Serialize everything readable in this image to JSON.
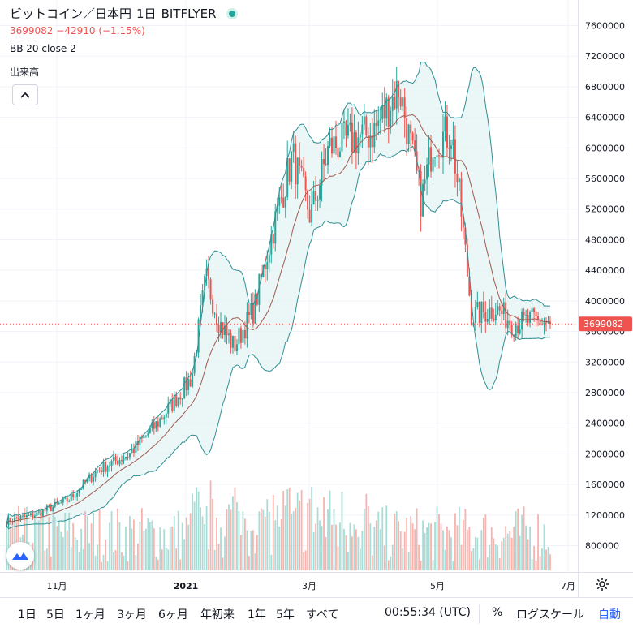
{
  "header": {
    "title": "ビットコイン／日本円",
    "interval": "1日",
    "exchange": "BITFLYER",
    "quote": "3699082",
    "change": "−42910 (−1.15%)",
    "indicator_bb": "BB 20 close 2",
    "indicator_volume": "出来高"
  },
  "price_scale": {
    "labels": [
      "7600000",
      "7200000",
      "6800000",
      "6400000",
      "6000000",
      "5600000",
      "5200000",
      "4800000",
      "4400000",
      "4000000",
      "3600000",
      "3200000",
      "2800000",
      "2400000",
      "2000000",
      "1600000",
      "1200000",
      "800000"
    ],
    "last_price_label": "3699082"
  },
  "time_scale": {
    "labels": [
      "11月",
      "2021",
      "3月",
      "5月",
      "7月"
    ]
  },
  "toolbar": {
    "ranges": [
      "1日",
      "5日",
      "1ヶ月",
      "3ヶ月",
      "6ヶ月",
      "年初来",
      "1年",
      "5年",
      "すべて"
    ],
    "clock": "00:55:34 (UTC)",
    "percent": "%",
    "log_scale": "ログスケール",
    "auto": "自動"
  },
  "colors": {
    "up": "#26a69a",
    "down": "#ef5350",
    "band": "#2f8f94",
    "basis": "#a05a50",
    "band_fill": "#e3f3f2",
    "up_volume": "#a8dcd6",
    "down_volume": "#f7b3ae"
  },
  "chart_data": {
    "type": "candlestick",
    "series": [
      {
        "name": "BB 20 close 2",
        "kind": "bollinger_bands"
      },
      {
        "name": "出来高",
        "kind": "volume"
      }
    ],
    "x": [
      "2020-10-01",
      "2020-10-15",
      "2020-11-01",
      "2020-11-15",
      "2020-12-01",
      "2020-12-15",
      "2021-01-01",
      "2021-01-08",
      "2021-01-15",
      "2021-01-22",
      "2021-02-01",
      "2021-02-10",
      "2021-02-20",
      "2021-03-01",
      "2021-03-10",
      "2021-03-20",
      "2021-04-01",
      "2021-04-14",
      "2021-04-25",
      "2021-05-01",
      "2021-05-10",
      "2021-05-15",
      "2021-05-20",
      "2021-06-01",
      "2021-06-10",
      "2021-06-20",
      "2021-06-28"
    ],
    "close": [
      1120000,
      1200000,
      1400000,
      1780000,
      2000000,
      2400000,
      3000000,
      4300000,
      3700000,
      3400000,
      3900000,
      4900000,
      5900000,
      5100000,
      6000000,
      6100000,
      6200000,
      6800000,
      5300000,
      6100000,
      6200000,
      5100000,
      3800000,
      3900000,
      3700000,
      3750000,
      3699082
    ],
    "ylim": [
      500000,
      7800000
    ],
    "last_price": 3699082
  }
}
